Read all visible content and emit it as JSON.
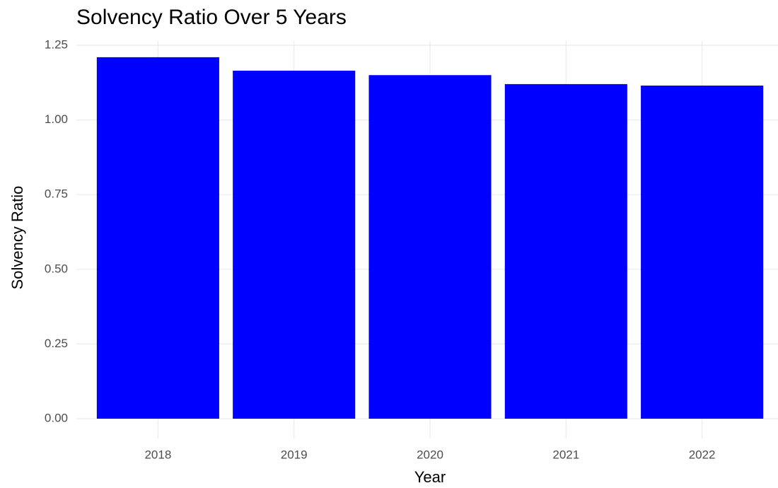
{
  "chart_data": {
    "type": "bar",
    "title": "Solvency Ratio Over 5 Years",
    "x_label": "Year",
    "y_label": "Solvency Ratio",
    "categories": [
      "2018",
      "2019",
      "2020",
      "2021",
      "2022"
    ],
    "values": [
      1.21,
      1.165,
      1.15,
      1.12,
      1.115
    ],
    "color": "#0000ff",
    "ylim": [
      0,
      1.25
    ],
    "yticks": [
      {
        "value": 0,
        "label": "0.00"
      },
      {
        "value": 0.25,
        "label": "0.25"
      },
      {
        "value": 0.5,
        "label": "0.50"
      },
      {
        "value": 0.75,
        "label": "0.75"
      },
      {
        "value": 1,
        "label": "1.00"
      },
      {
        "value": 1.25,
        "label": "1.25"
      }
    ],
    "grid": true
  }
}
